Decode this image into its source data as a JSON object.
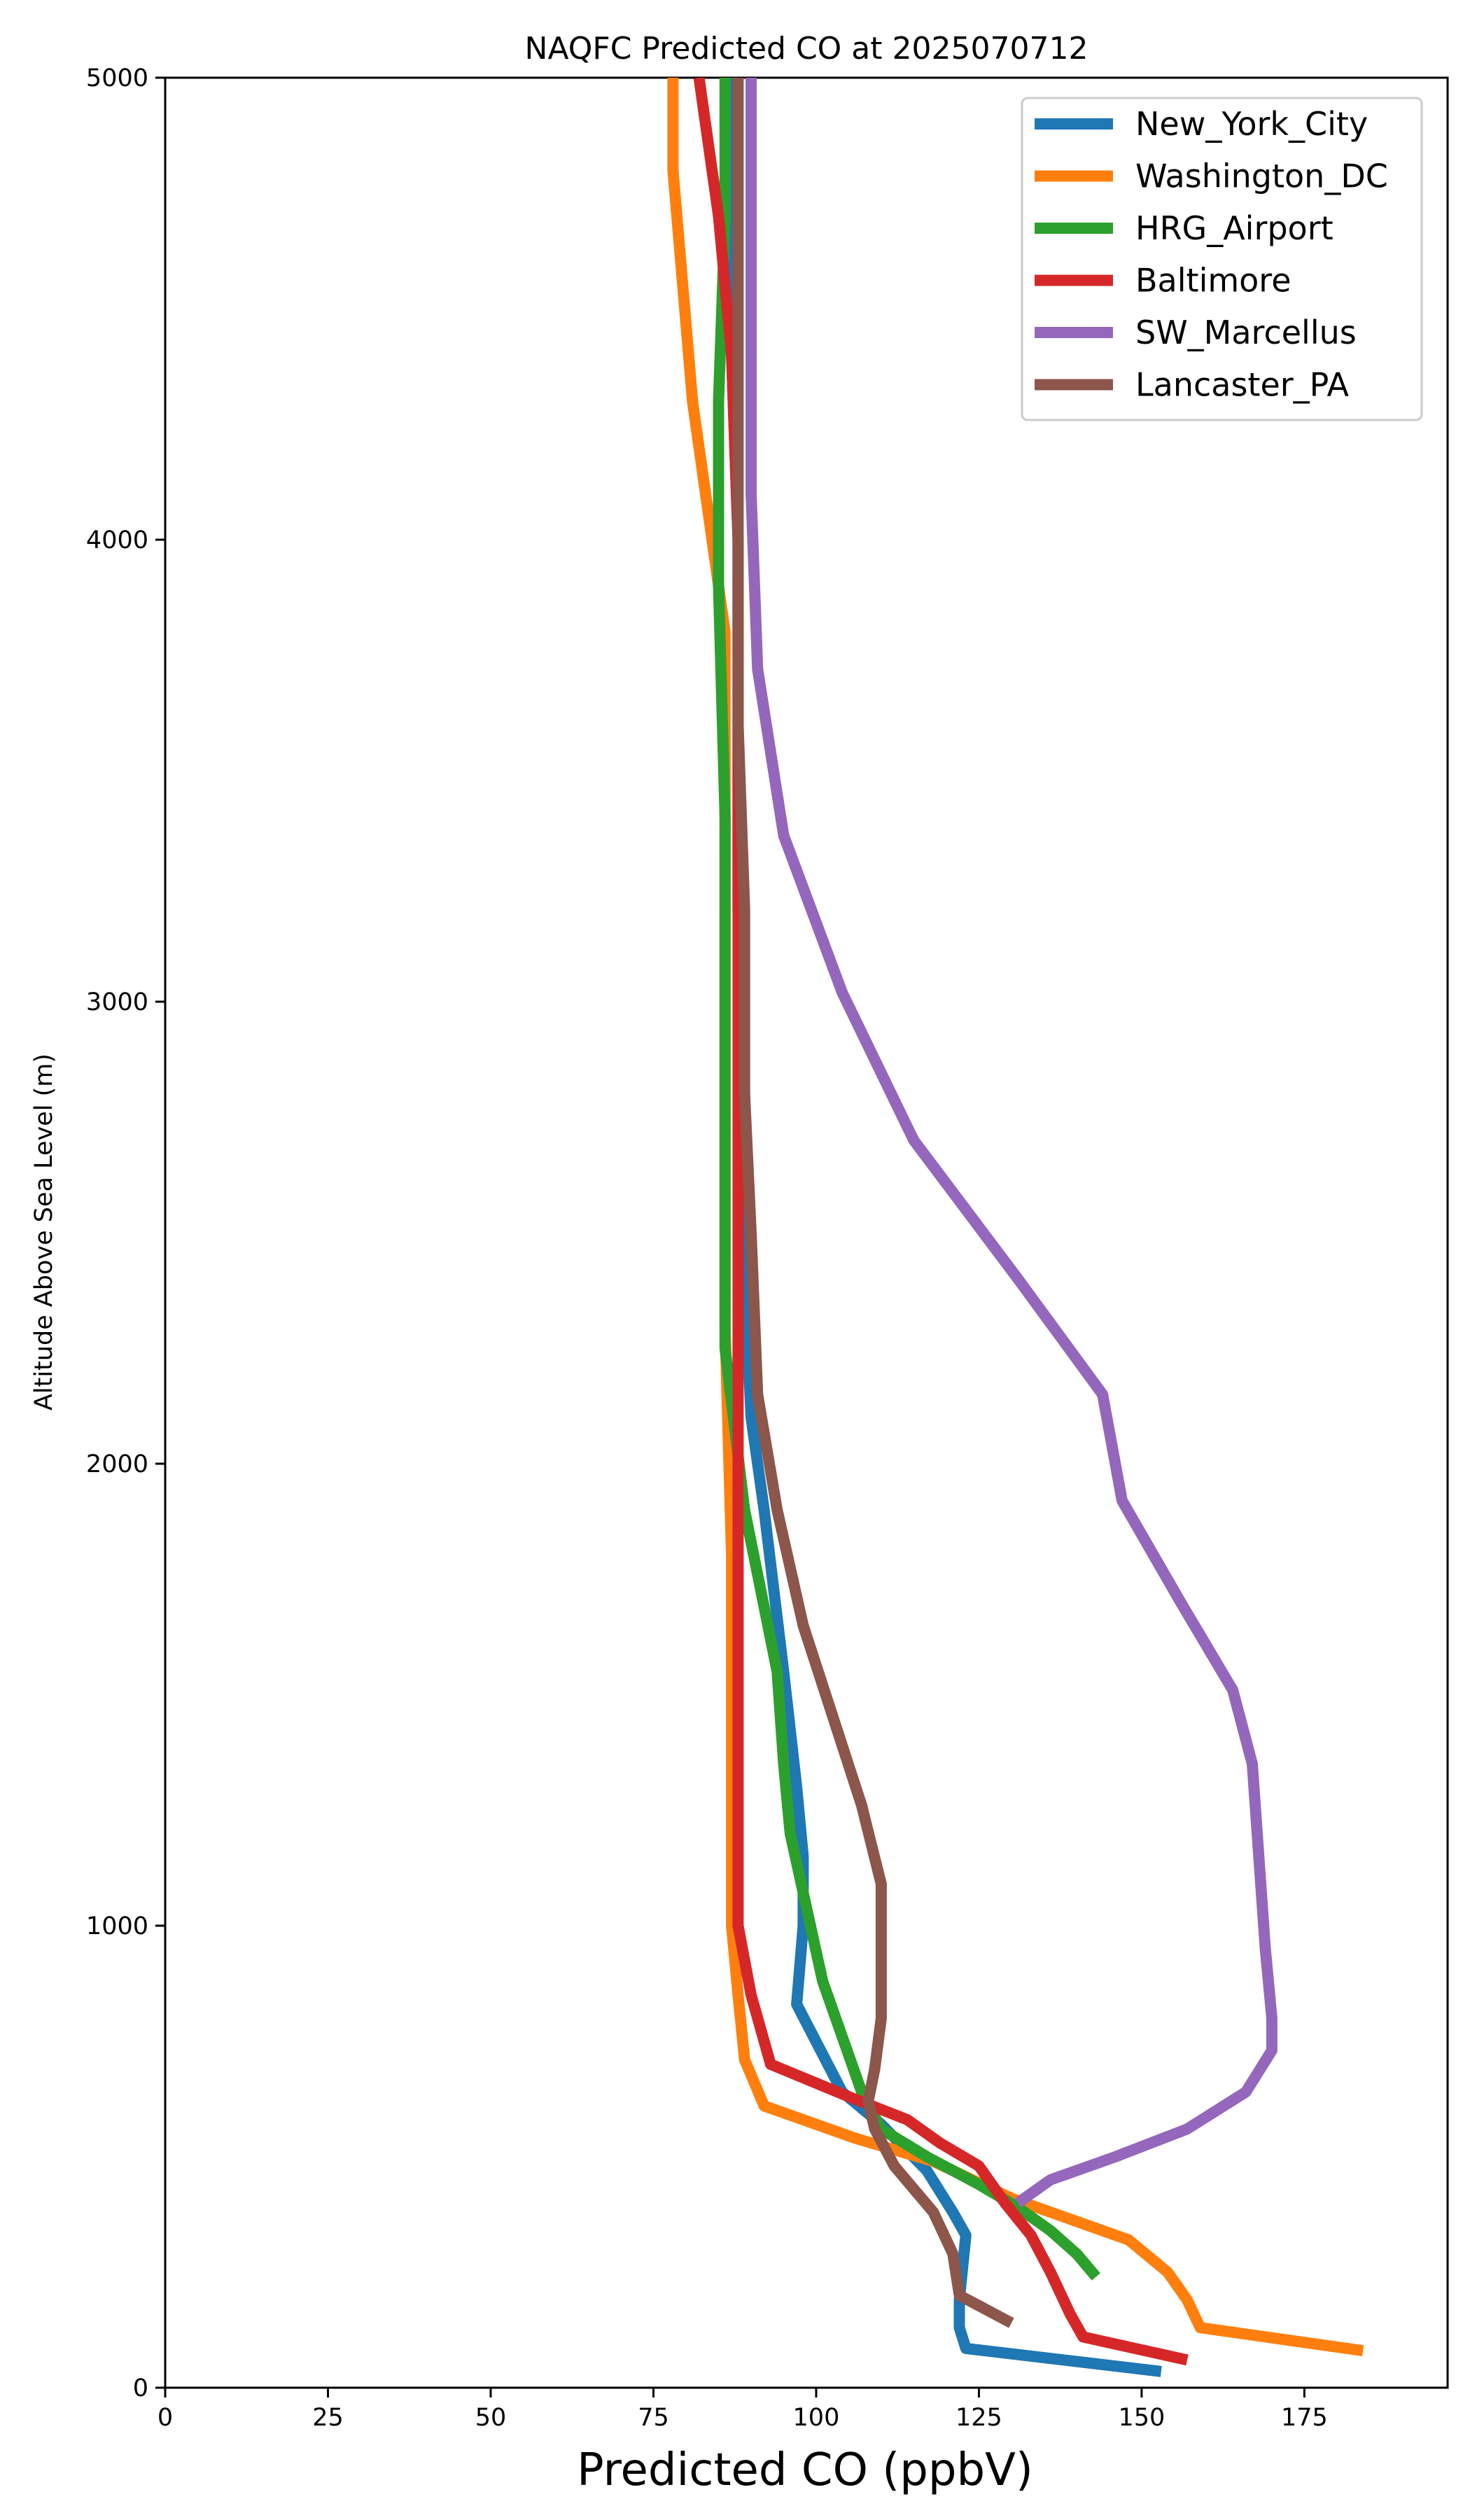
{
  "chart_data": {
    "type": "line",
    "title": "NAQFC Predicted CO at 2025070712",
    "xlabel": "Predicted CO (ppbV)",
    "ylabel": "Altitude Above Sea Level (m)",
    "xlim": [
      0,
      197
    ],
    "ylim": [
      0,
      5000
    ],
    "xticks": [
      "0",
      "25",
      "50",
      "75",
      "100",
      "125",
      "150",
      "175"
    ],
    "yticks": [
      "0",
      "1000",
      "2000",
      "3000",
      "4000",
      "5000"
    ],
    "grid": false,
    "legend_position": "top-right",
    "series": [
      {
        "name": "New_York_City",
        "color": "#1f77b4",
        "points": [
          [
            153,
            35
          ],
          [
            123,
            85
          ],
          [
            122,
            130
          ],
          [
            122,
            190
          ],
          [
            123,
            330
          ],
          [
            121,
            380
          ],
          [
            117,
            470
          ],
          [
            110,
            570
          ],
          [
            104,
            640
          ],
          [
            97,
            830
          ],
          [
            98,
            1000
          ],
          [
            98,
            1150
          ],
          [
            97,
            1300
          ],
          [
            95,
            1550
          ],
          [
            92,
            1900
          ],
          [
            90,
            2100
          ],
          [
            89,
            2400
          ],
          [
            89,
            2800
          ],
          [
            88,
            3200
          ],
          [
            88,
            3600
          ],
          [
            88,
            4000
          ],
          [
            87,
            4400
          ],
          [
            87,
            5000
          ]
        ]
      },
      {
        "name": "Washington_DC",
        "color": "#ff7f0e",
        "points": [
          [
            184,
            80
          ],
          [
            159,
            130
          ],
          [
            157,
            190
          ],
          [
            154,
            250
          ],
          [
            148,
            320
          ],
          [
            140,
            360
          ],
          [
            130,
            410
          ],
          [
            118,
            490
          ],
          [
            106,
            540
          ],
          [
            92,
            610
          ],
          [
            89,
            710
          ],
          [
            88,
            850
          ],
          [
            87,
            1000
          ],
          [
            87,
            1300
          ],
          [
            87,
            1800
          ],
          [
            86,
            2300
          ],
          [
            86,
            2800
          ],
          [
            86,
            3300
          ],
          [
            86,
            3800
          ],
          [
            84,
            4000
          ],
          [
            81,
            4300
          ],
          [
            78,
            4800
          ],
          [
            78,
            5000
          ]
        ]
      },
      {
        "name": "HRG_Airport",
        "color": "#2ca02c",
        "points": [
          [
            143,
            240
          ],
          [
            140,
            290
          ],
          [
            136,
            340
          ],
          [
            131,
            390
          ],
          [
            125,
            440
          ],
          [
            117,
            500
          ],
          [
            110,
            560
          ],
          [
            107,
            640
          ],
          [
            101,
            880
          ],
          [
            96,
            1200
          ],
          [
            95,
            1350
          ],
          [
            94,
            1550
          ],
          [
            89,
            1900
          ],
          [
            86,
            2250
          ],
          [
            86,
            2600
          ],
          [
            86,
            3000
          ],
          [
            86,
            3400
          ],
          [
            85,
            3900
          ],
          [
            85,
            4300
          ],
          [
            86,
            4700
          ],
          [
            86,
            5000
          ]
        ]
      },
      {
        "name": "Baltimore",
        "color": "#d62728",
        "points": [
          [
            157,
            60
          ],
          [
            141,
            110
          ],
          [
            139,
            160
          ],
          [
            136,
            250
          ],
          [
            133,
            330
          ],
          [
            129,
            400
          ],
          [
            125,
            480
          ],
          [
            119,
            530
          ],
          [
            114,
            580
          ],
          [
            105,
            630
          ],
          [
            93,
            700
          ],
          [
            90,
            850
          ],
          [
            88,
            1000
          ],
          [
            88,
            1300
          ],
          [
            88,
            1700
          ],
          [
            88,
            2100
          ],
          [
            88,
            2500
          ],
          [
            88,
            3000
          ],
          [
            88,
            3500
          ],
          [
            88,
            4000
          ],
          [
            87,
            4400
          ],
          [
            85,
            4700
          ],
          [
            82,
            5000
          ]
        ]
      },
      {
        "name": "SW_Marcellus",
        "color": "#9467bd",
        "points": [
          [
            131,
            400
          ],
          [
            136,
            450
          ],
          [
            146,
            500
          ],
          [
            157,
            560
          ],
          [
            166,
            640
          ],
          [
            170,
            730
          ],
          [
            170,
            800
          ],
          [
            169,
            950
          ],
          [
            167,
            1350
          ],
          [
            164,
            1510
          ],
          [
            156,
            1700
          ],
          [
            147,
            1920
          ],
          [
            144,
            2150
          ],
          [
            131,
            2400
          ],
          [
            115,
            2700
          ],
          [
            104,
            3020
          ],
          [
            95,
            3360
          ],
          [
            91,
            3720
          ],
          [
            90,
            4100
          ],
          [
            90,
            4500
          ],
          [
            90,
            5000
          ]
        ]
      },
      {
        "name": "Lancaster_PA",
        "color": "#8c564b",
        "points": [
          [
            130,
            140
          ],
          [
            122,
            200
          ],
          [
            121,
            290
          ],
          [
            118,
            380
          ],
          [
            112,
            480
          ],
          [
            109,
            560
          ],
          [
            108,
            620
          ],
          [
            109,
            690
          ],
          [
            110,
            800
          ],
          [
            110,
            950
          ],
          [
            110,
            1090
          ],
          [
            107,
            1260
          ],
          [
            98,
            1650
          ],
          [
            94,
            1900
          ],
          [
            91,
            2150
          ],
          [
            90,
            2500
          ],
          [
            89,
            2800
          ],
          [
            89,
            3200
          ],
          [
            88,
            3600
          ],
          [
            88,
            4000
          ],
          [
            88,
            4500
          ],
          [
            88,
            5000
          ]
        ]
      }
    ]
  }
}
